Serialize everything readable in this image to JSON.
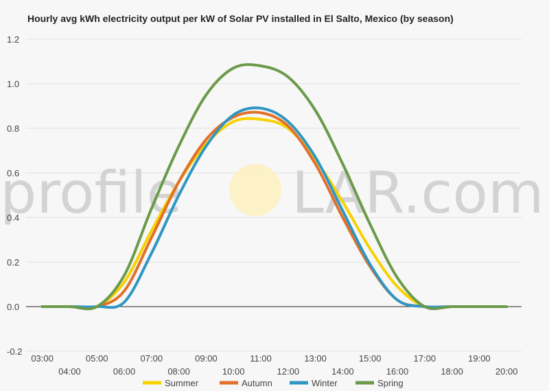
{
  "chart_data": {
    "type": "line",
    "title": "Hourly avg kWh electricity output per kW of Solar PV installed in El Salto, Mexico (by season)",
    "watermark": {
      "left": "profile",
      "right": "LAR.com"
    },
    "x": [
      "03:00",
      "04:00",
      "05:00",
      "06:00",
      "07:00",
      "08:00",
      "09:00",
      "10:00",
      "11:00",
      "12:00",
      "13:00",
      "14:00",
      "15:00",
      "16:00",
      "17:00",
      "18:00",
      "19:00",
      "20:00"
    ],
    "ylim": [
      -0.2,
      1.2
    ],
    "yticks": [
      "-0.2",
      "0.0",
      "0.2",
      "0.4",
      "0.6",
      "0.8",
      "1.0",
      "1.2"
    ],
    "grid": true,
    "legend_position": "bottom",
    "series": [
      {
        "name": "Summer",
        "color": "#f7d100",
        "values": [
          0,
          0,
          0,
          0.11,
          0.34,
          0.56,
          0.73,
          0.83,
          0.84,
          0.8,
          0.66,
          0.47,
          0.26,
          0.09,
          0,
          0,
          0,
          0
        ]
      },
      {
        "name": "Autumn",
        "color": "#e0702a",
        "values": [
          0,
          0,
          0,
          0.07,
          0.31,
          0.56,
          0.75,
          0.85,
          0.87,
          0.81,
          0.64,
          0.4,
          0.18,
          0.03,
          0,
          0,
          0,
          0
        ]
      },
      {
        "name": "Winter",
        "color": "#2f96c3",
        "values": [
          0,
          0,
          0,
          0.02,
          0.24,
          0.5,
          0.72,
          0.86,
          0.89,
          0.83,
          0.67,
          0.43,
          0.19,
          0.03,
          0,
          0,
          0,
          0
        ]
      },
      {
        "name": "Spring",
        "color": "#6b9a4a",
        "values": [
          0,
          0,
          0,
          0.14,
          0.44,
          0.72,
          0.95,
          1.07,
          1.08,
          1.03,
          0.88,
          0.64,
          0.37,
          0.13,
          0,
          0,
          0,
          0
        ]
      }
    ]
  }
}
